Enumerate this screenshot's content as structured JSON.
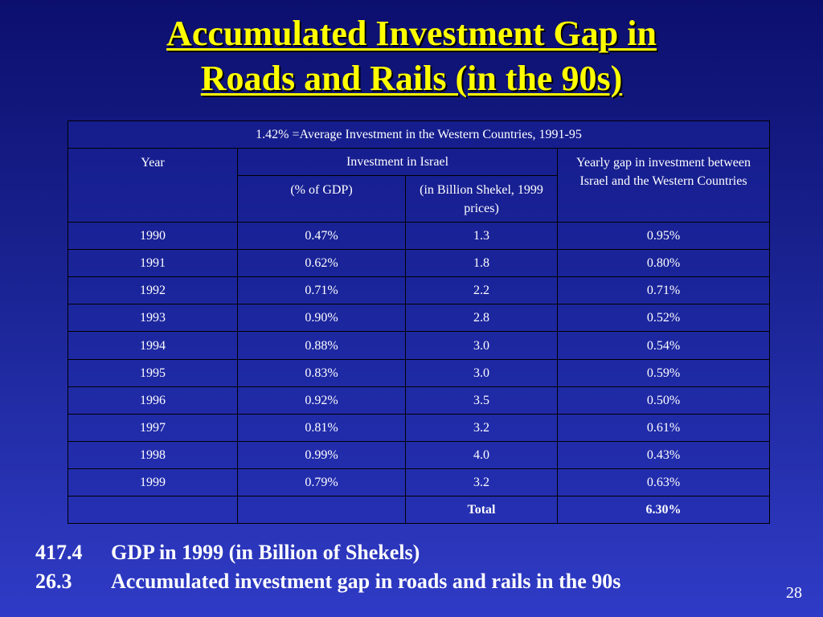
{
  "slide": {
    "title_line1": "Accumulated Investment Gap in",
    "title_line2": "Roads and Rails (in the 90s)",
    "page_number": "28"
  },
  "table": {
    "caption": "1.42% =Average Investment in the Western Countries, 1991-95",
    "headers": {
      "year": "Year",
      "investment": "Investment in Israel",
      "gap": "Yearly gap in investment between Israel and the Western Countries",
      "pct_gdp": "(% of GDP)",
      "billion": "(in Billion Shekel, 1999 prices)"
    },
    "rows": [
      {
        "year": "1990",
        "pct": "0.47%",
        "billion": "1.3",
        "gap": "0.95%"
      },
      {
        "year": "1991",
        "pct": "0.62%",
        "billion": "1.8",
        "gap": "0.80%"
      },
      {
        "year": "1992",
        "pct": "0.71%",
        "billion": "2.2",
        "gap": "0.71%"
      },
      {
        "year": "1993",
        "pct": "0.90%",
        "billion": "2.8",
        "gap": "0.52%"
      },
      {
        "year": "1994",
        "pct": "0.88%",
        "billion": "3.0",
        "gap": "0.54%"
      },
      {
        "year": "1995",
        "pct": "0.83%",
        "billion": "3.0",
        "gap": "0.59%"
      },
      {
        "year": "1996",
        "pct": "0.92%",
        "billion": "3.5",
        "gap": "0.50%"
      },
      {
        "year": "1997",
        "pct": "0.81%",
        "billion": "3.2",
        "gap": "0.61%"
      },
      {
        "year": "1998",
        "pct": "0.99%",
        "billion": "4.0",
        "gap": "0.43%"
      },
      {
        "year": "1999",
        "pct": "0.79%",
        "billion": "3.2",
        "gap": "0.63%"
      }
    ],
    "total_label": "Total",
    "total_value": "6.30%"
  },
  "footer": [
    {
      "num": "417.4",
      "text": "GDP in 1999 (in Billion of Shekels)"
    },
    {
      "num": "26.3",
      "text": "Accumulated investment gap in roads and rails in the 90s"
    }
  ],
  "colors": {
    "title": "#ffff00",
    "background_top": "#0c0f6e",
    "background_bottom": "#2f3bc6"
  }
}
